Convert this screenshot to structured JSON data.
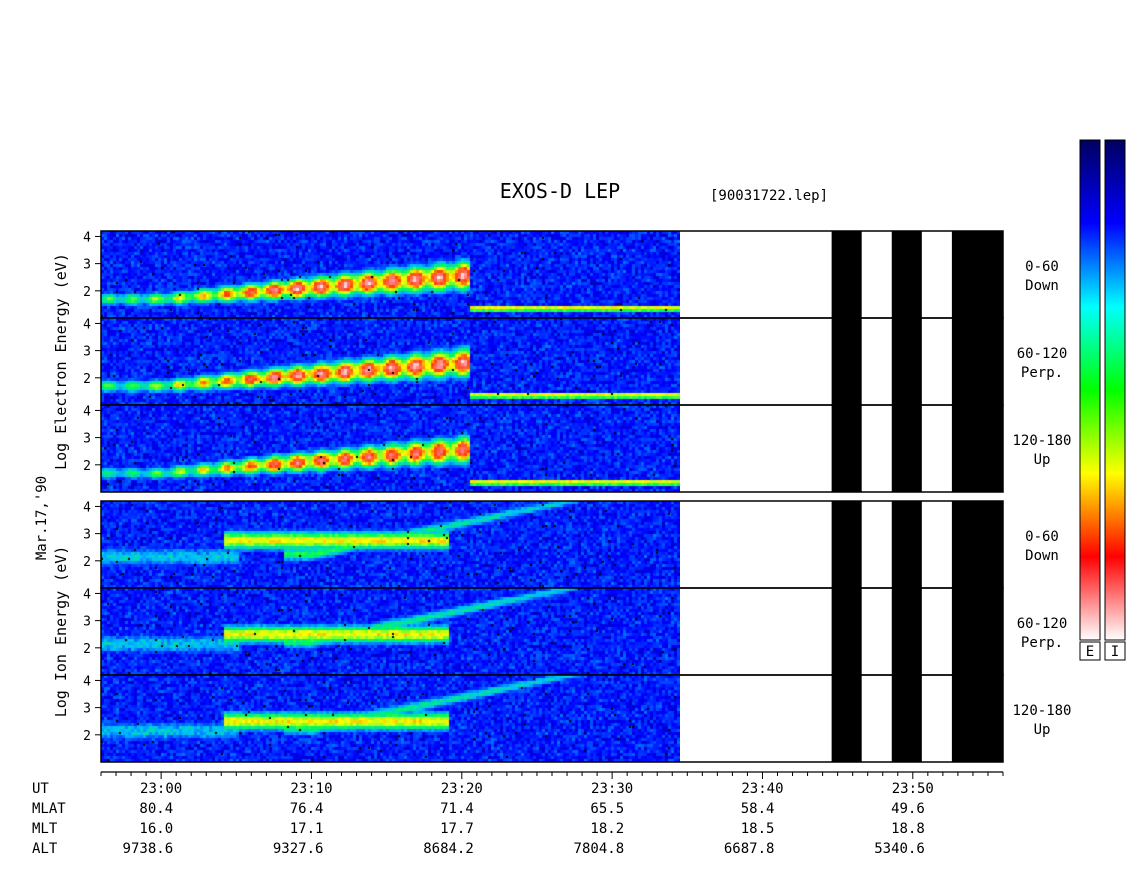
{
  "chart_data": {
    "type": "heatmap",
    "title": "EXOS-D LEP",
    "file_label": "[90031722.lep]",
    "date_label": "Mar.17,'90",
    "x_axis": {
      "unit": "UT",
      "range": [
        "22:56",
        "23:56"
      ],
      "major_ticks": [
        "23:00",
        "23:10",
        "23:20",
        "23:30",
        "23:40",
        "23:50"
      ]
    },
    "data_gaps_ut": [
      [
        "23:34.5",
        "23:44.6"
      ],
      [
        "23:46.6",
        "23:48.6"
      ],
      [
        "23:50.6",
        "23:52.6"
      ]
    ],
    "y_axis": {
      "label": "Log Energy (eV)",
      "range": [
        1,
        4.2
      ],
      "ticks": [
        "2",
        "3",
        "4"
      ]
    },
    "groups": [
      {
        "species": "Electron",
        "ylabel_words": [
          "Log",
          "Electron",
          "Energy",
          "(eV)"
        ],
        "panels": [
          {
            "name": "0-60",
            "direction": "Down"
          },
          {
            "name": "60-120",
            "direction": "Perp."
          },
          {
            "name": "120-180",
            "direction": "Up"
          }
        ]
      },
      {
        "species": "Ion",
        "ylabel_words": [
          "Log",
          "Ion",
          "Energy",
          "(eV)"
        ],
        "panels": [
          {
            "name": "0-60",
            "direction": "Down"
          },
          {
            "name": "60-120",
            "direction": "Perp."
          },
          {
            "name": "120-180",
            "direction": "Up"
          }
        ]
      }
    ],
    "colorbar": {
      "labels": [
        "E",
        "I"
      ],
      "scale": [
        "#ffffff",
        "#ff0000",
        "#ffff00",
        "#00ff00",
        "#00ffff",
        "#0000ff",
        "#000060"
      ]
    },
    "ephemeris": {
      "rows": [
        {
          "label": "UT",
          "values": [
            "23:00",
            "23:10",
            "23:20",
            "23:30",
            "23:40",
            "23:50"
          ]
        },
        {
          "label": "MLAT",
          "values": [
            "80.4",
            "76.4",
            "71.4",
            "65.5",
            "58.4",
            "49.6"
          ]
        },
        {
          "label": "MLT",
          "values": [
            "16.0",
            "17.1",
            "17.7",
            "18.2",
            "18.5",
            "18.8"
          ]
        },
        {
          "label": "ALT",
          "values": [
            "9738.6",
            "9327.6",
            "8684.2",
            "7804.8",
            "6687.8",
            "5340.6"
          ]
        }
      ]
    }
  }
}
